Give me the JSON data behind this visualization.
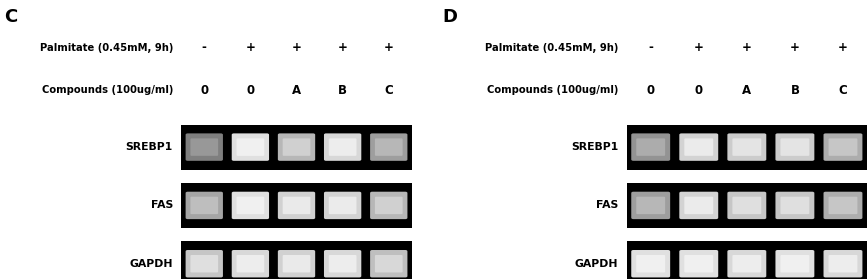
{
  "panel_C_label": "C",
  "panel_D_label": "D",
  "row1_label": "Palmitate (0.45mM, 9h)",
  "row2_label": "Compounds (100ug/ml)",
  "row1_values_C": [
    "-",
    "+",
    "+",
    "+",
    "+"
  ],
  "row2_values_C": [
    "0",
    "0",
    "A",
    "B",
    "C"
  ],
  "row1_values_D": [
    "-",
    "+",
    "+",
    "+",
    "+"
  ],
  "row2_values_D": [
    "0",
    "0",
    "A",
    "B",
    "C"
  ],
  "gene_labels": [
    "SREBP1",
    "FAS",
    "GAPDH"
  ],
  "bg_color": "#ffffff",
  "panel_C_bands": {
    "SREBP1": [
      0.5,
      0.88,
      0.72,
      0.85,
      0.62
    ],
    "FAS": [
      0.65,
      0.88,
      0.82,
      0.83,
      0.72
    ],
    "GAPDH": [
      0.78,
      0.85,
      0.82,
      0.85,
      0.75
    ]
  },
  "panel_D_bands": {
    "SREBP1": [
      0.58,
      0.83,
      0.8,
      0.8,
      0.68
    ],
    "FAS": [
      0.62,
      0.83,
      0.78,
      0.78,
      0.68
    ],
    "GAPDH": [
      0.88,
      0.88,
      0.85,
      0.88,
      0.85
    ]
  }
}
